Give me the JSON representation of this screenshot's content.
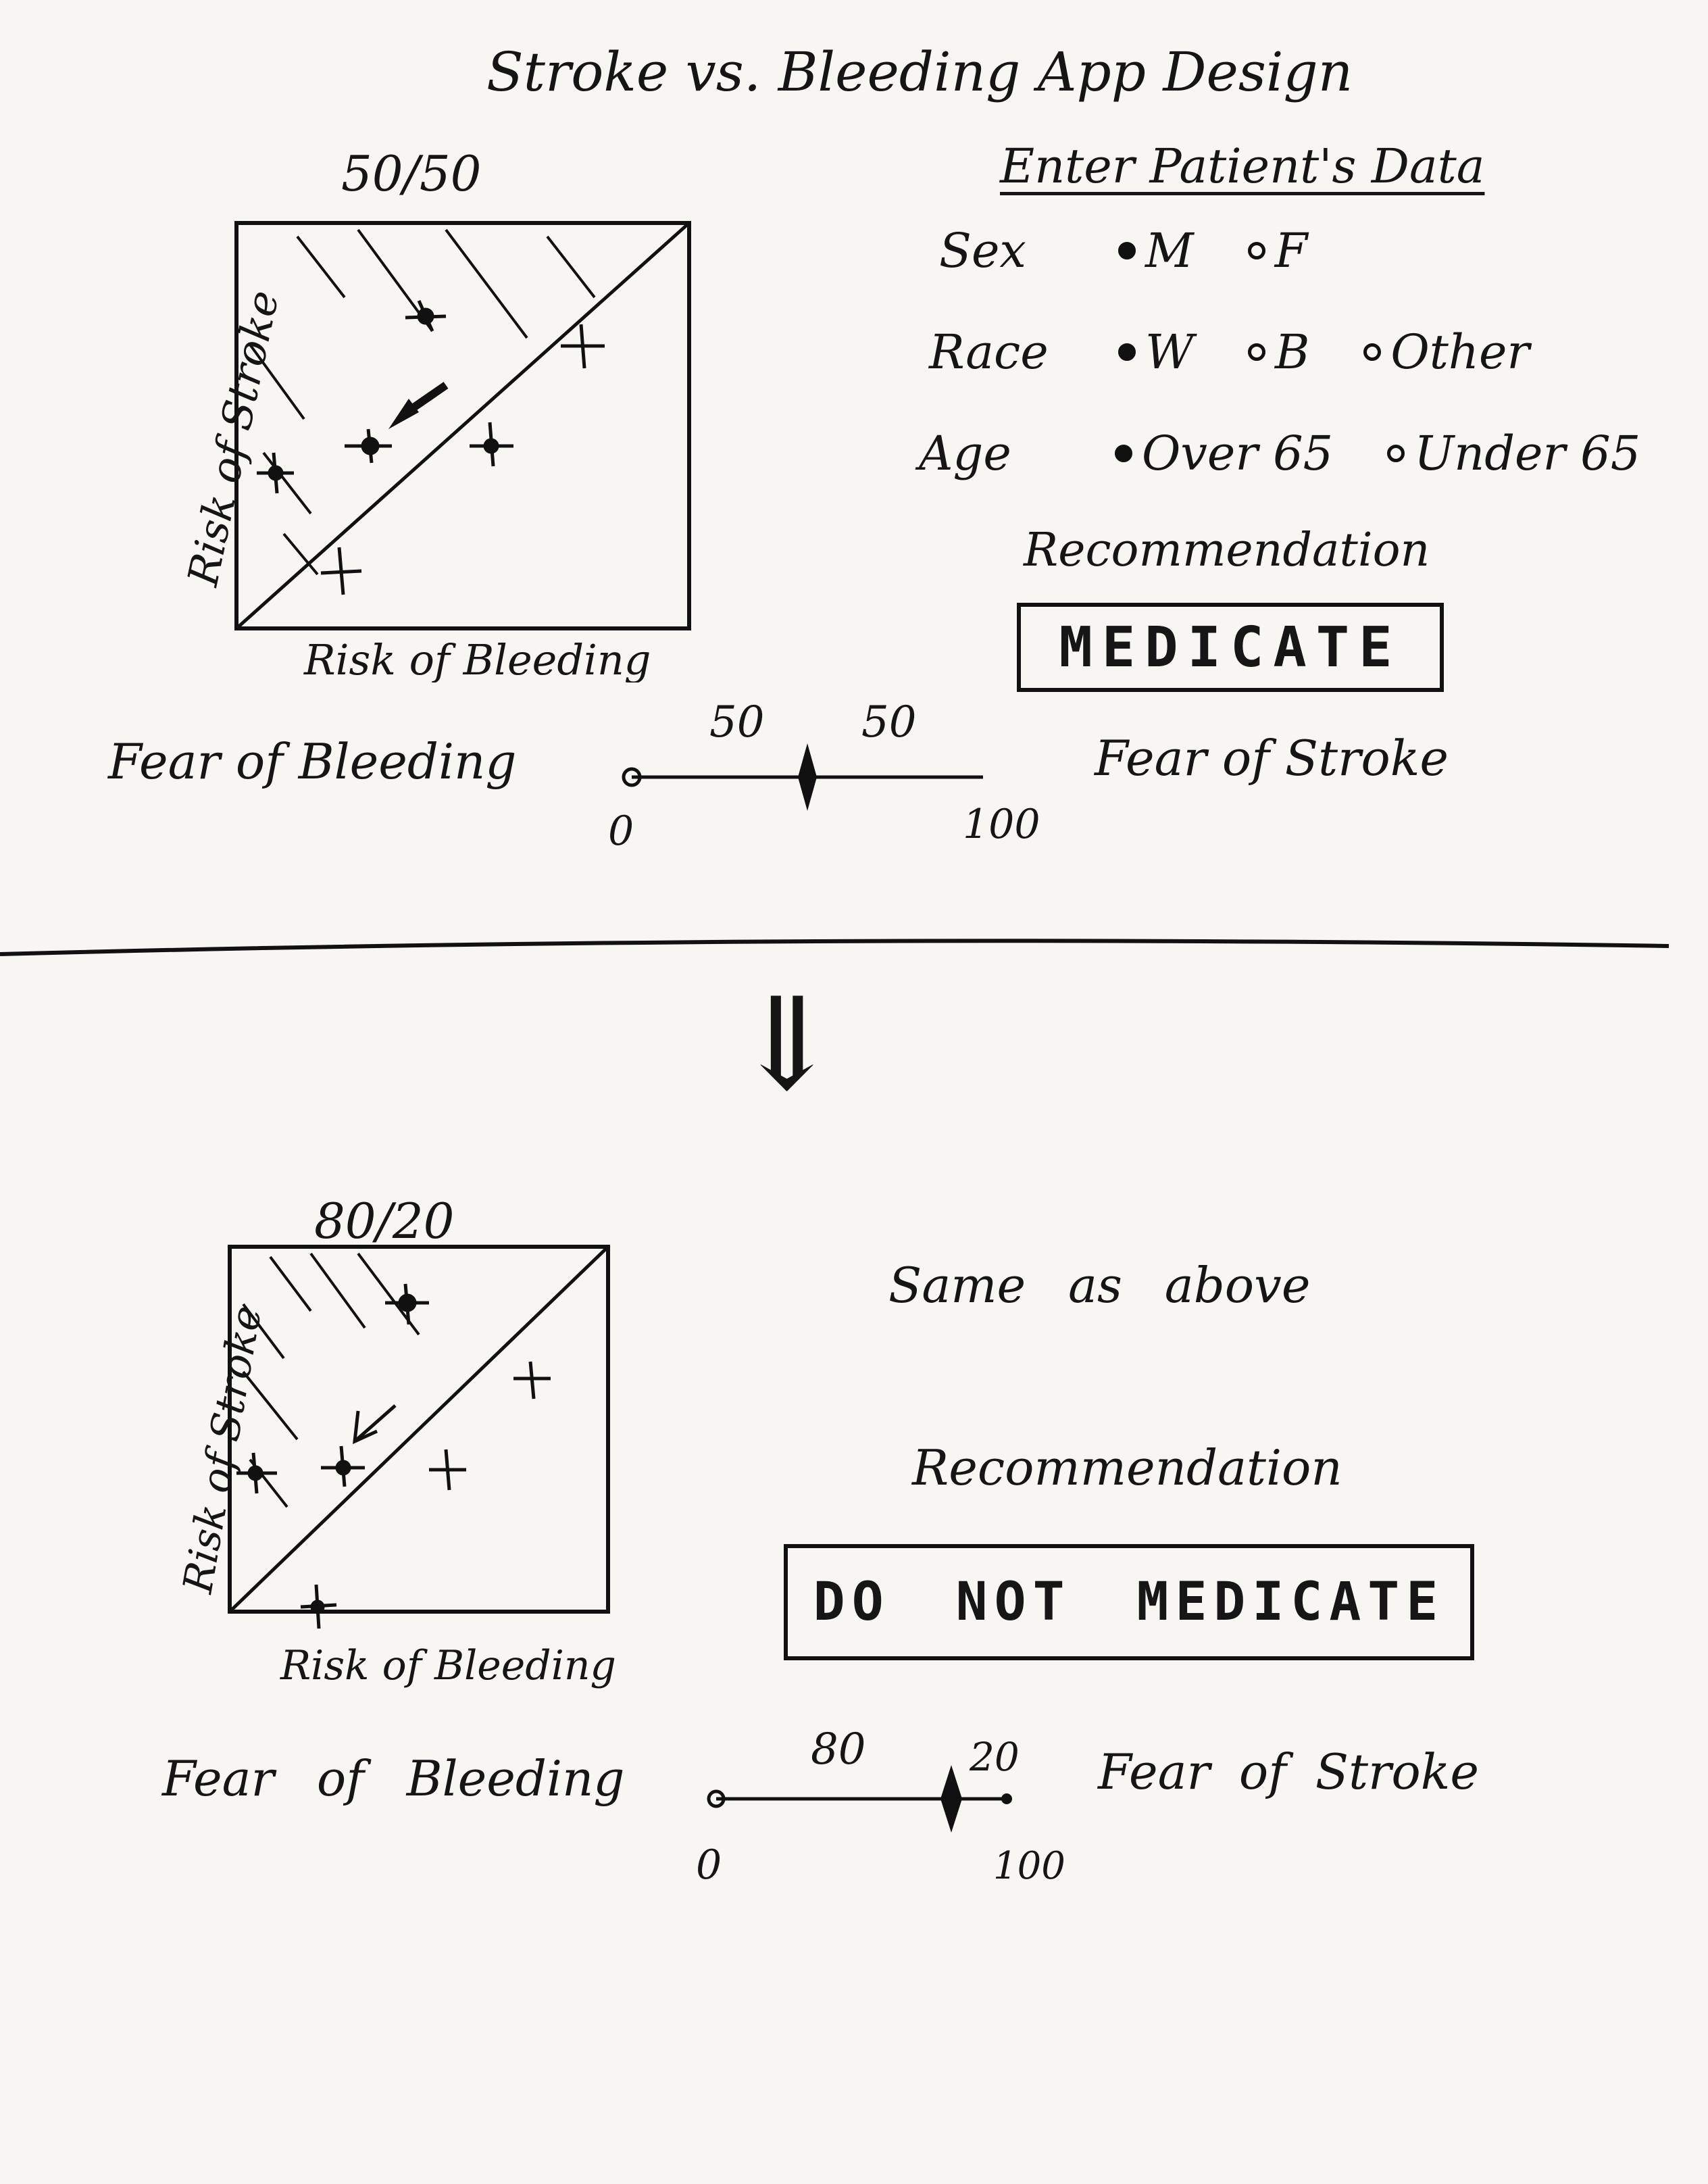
{
  "title": "Stroke vs. Bleeding App Design",
  "top_section": {
    "ratio_label": "50/50",
    "x_axis_label": "Risk of Bleeding",
    "y_axis_label": "Risk of Stroke",
    "form_heading": "Enter Patient's Data",
    "sex": {
      "label": "Sex",
      "options": [
        "M",
        "F"
      ],
      "selected": "M"
    },
    "race": {
      "label": "Race",
      "options": [
        "W",
        "B",
        "Other"
      ],
      "selected": "W"
    },
    "age": {
      "label": "Age",
      "options": [
        "Over 65",
        "Under 65"
      ],
      "selected": "Over 65"
    },
    "recommendation_label": "Recommendation",
    "recommendation_value": "MEDICATE",
    "slider": {
      "left_label": "Fear of Bleeding",
      "right_label": "Fear of Stroke",
      "left_value": "50",
      "right_value": "50",
      "min_label": "0",
      "max_label": "100",
      "position": 0.5
    }
  },
  "arrow_glyph": "⇓",
  "bottom_section": {
    "ratio_label": "80/20",
    "x_axis_label": "Risk of Bleeding",
    "y_axis_label": "Risk of Stroke",
    "same_as_above": "Same as above",
    "recommendation_label": "Recommendation",
    "recommendation_value": "DO NOT MEDICATE",
    "slider": {
      "left_label": "Fear of Bleeding",
      "right_label": "Fear of Stroke",
      "left_value": "80",
      "right_value": "20",
      "min_label": "0",
      "max_label": "100",
      "position": 0.8
    }
  },
  "colors": {
    "ink": "#151515",
    "paper": "#f7f6f3"
  }
}
